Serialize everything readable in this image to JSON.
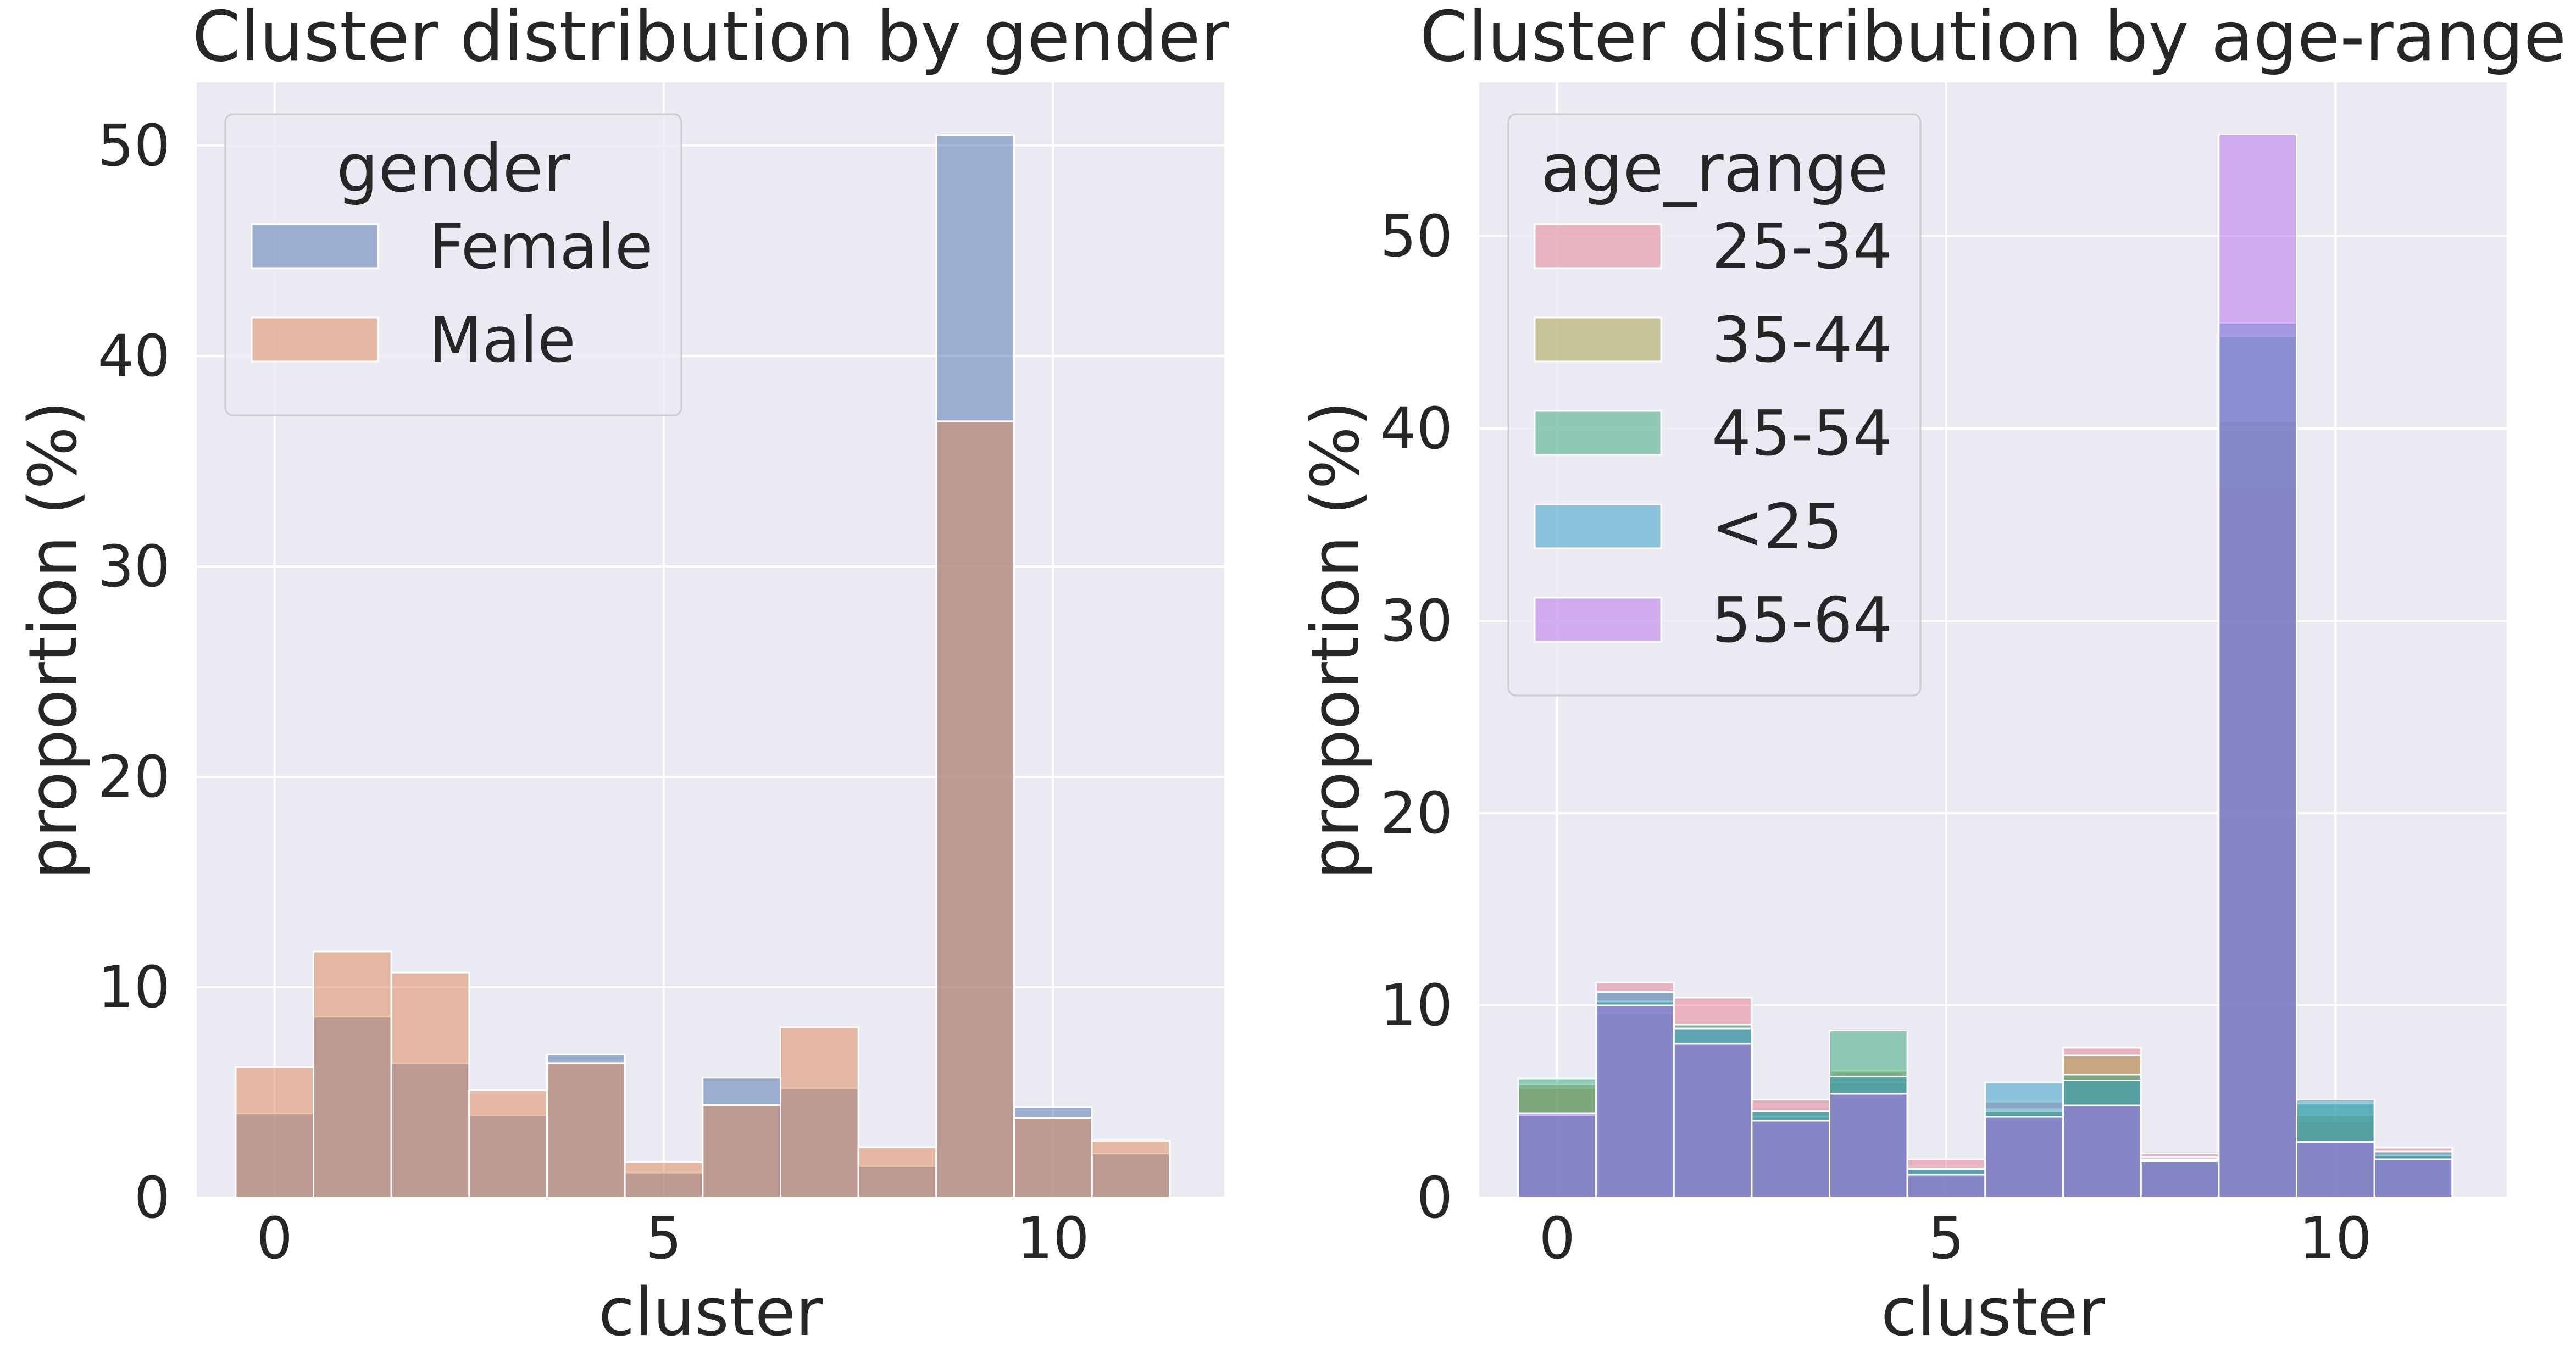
{
  "chart_data": [
    {
      "type": "bar",
      "title": "Cluster distribution by gender",
      "xlabel": "cluster",
      "ylabel": "proportion (%)",
      "x": [
        0,
        1,
        2,
        3,
        4,
        5,
        6,
        7,
        8,
        9,
        10,
        11
      ],
      "xlim": [
        -1,
        12.2
      ],
      "ylim": [
        0,
        53
      ],
      "xticks": [
        0,
        5,
        10
      ],
      "yticks": [
        0,
        10,
        20,
        30,
        40,
        50
      ],
      "grid": true,
      "legend": {
        "title": "gender",
        "placement": "top-left"
      },
      "series": [
        {
          "name": "Female",
          "color": "#4c72b0",
          "values": [
            4.0,
            8.6,
            6.4,
            3.9,
            6.8,
            1.2,
            5.7,
            5.2,
            1.5,
            50.5,
            4.3,
            2.1
          ]
        },
        {
          "name": "Male",
          "color": "#dd8452",
          "values": [
            6.2,
            11.7,
            10.7,
            5.1,
            6.4,
            1.7,
            4.4,
            8.1,
            2.4,
            36.9,
            3.8,
            2.7
          ]
        }
      ]
    },
    {
      "type": "bar",
      "title": "Cluster distribution by age-range",
      "xlabel": "cluster",
      "ylabel": "proportion (%)",
      "x": [
        0,
        1,
        2,
        3,
        4,
        5,
        6,
        7,
        8,
        9,
        10,
        11
      ],
      "xlim": [
        -1,
        12.2
      ],
      "ylim": [
        0,
        58
      ],
      "xticks": [
        0,
        5,
        10
      ],
      "yticks": [
        0,
        10,
        20,
        30,
        40,
        50
      ],
      "grid": true,
      "legend": {
        "title": "age_range",
        "placement": "top-left"
      },
      "series": [
        {
          "name": "25-34",
          "color": "#e8798f",
          "values": [
            5.7,
            11.2,
            10.4,
            5.1,
            6.0,
            2.0,
            5.0,
            7.8,
            2.3,
            37.0,
            4.0,
            2.6
          ]
        },
        {
          "name": "35-44",
          "color": "#a39b3f",
          "values": [
            5.9,
            9.6,
            8.0,
            4.2,
            6.6,
            1.1,
            4.6,
            7.4,
            2.0,
            40.4,
            4.3,
            2.2
          ]
        },
        {
          "name": "45-54",
          "color": "#33a878",
          "values": [
            6.2,
            10.2,
            9.0,
            4.5,
            8.7,
            1.5,
            4.5,
            6.4,
            2.1,
            44.8,
            4.9,
            2.2
          ]
        },
        {
          "name": "<25",
          "color": "#2e9ac4",
          "values": [
            4.3,
            10.7,
            8.8,
            4.5,
            6.3,
            1.5,
            6.0,
            6.1,
            2.0,
            45.5,
            5.1,
            2.4
          ]
        },
        {
          "name": "55-64",
          "color": "#b56cec",
          "values": [
            4.4,
            10.0,
            8.0,
            4.0,
            5.4,
            1.2,
            4.2,
            4.8,
            1.9,
            55.3,
            2.9,
            2.0
          ]
        }
      ]
    }
  ]
}
